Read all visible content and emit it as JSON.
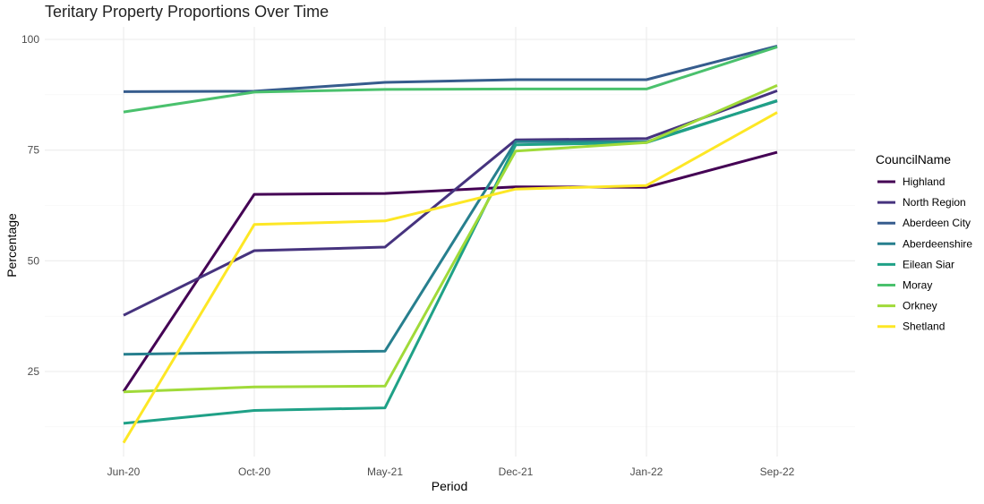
{
  "chart_data": {
    "type": "line",
    "title": "Teritary Property Proportions Over Time",
    "xlabel": "Period",
    "ylabel": "Percentage",
    "categories": [
      "Jun-20",
      "Oct-20",
      "May-21",
      "Dec-21",
      "Jan-22",
      "Sep-22"
    ],
    "ylim": [
      7.5,
      102
    ],
    "yticks": [
      "25",
      "50",
      "75",
      "100"
    ],
    "grid": true,
    "legend": {
      "title": "CouncilName",
      "position": "right"
    },
    "series": [
      {
        "name": "Highland",
        "color": "#440154",
        "values": [
          20.5,
          65.0,
          65.2,
          66.7,
          66.6,
          74.5
        ]
      },
      {
        "name": "North Region",
        "color": "#46337e",
        "values": [
          37.7,
          52.3,
          53.1,
          77.3,
          77.6,
          88.4
        ]
      },
      {
        "name": "Aberdeen City",
        "color": "#365c8d",
        "values": [
          88.2,
          88.3,
          90.3,
          90.9,
          90.9,
          98.5
        ]
      },
      {
        "name": "Aberdeenshire",
        "color": "#277f8e",
        "values": [
          28.9,
          29.3,
          29.6,
          76.9,
          76.9,
          86.1
        ]
      },
      {
        "name": "Eilean Siar",
        "color": "#1fa187",
        "values": [
          13.3,
          16.2,
          16.8,
          76.2,
          76.7,
          86.2
        ]
      },
      {
        "name": "Moray",
        "color": "#4ac16d",
        "values": [
          83.6,
          88.1,
          88.7,
          88.8,
          88.8,
          98.3
        ]
      },
      {
        "name": "Orkney",
        "color": "#a0da39",
        "values": [
          20.4,
          21.5,
          21.7,
          74.8,
          76.7,
          89.6
        ]
      },
      {
        "name": "Shetland",
        "color": "#fde725",
        "values": [
          8.9,
          58.2,
          59.0,
          66.2,
          67.0,
          83.5
        ]
      }
    ]
  }
}
